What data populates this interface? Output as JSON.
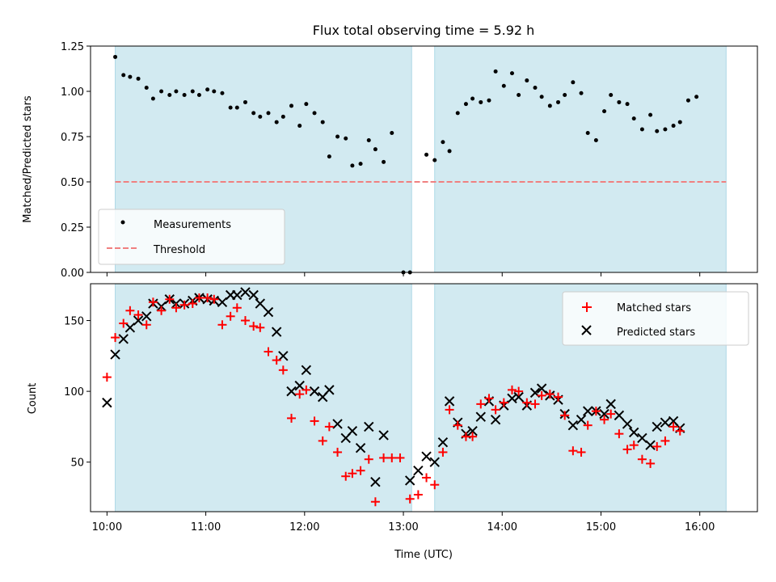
{
  "chart_data": [
    {
      "type": "scatter",
      "title": "Flux total observing time = 5.92 h",
      "xlabel": "",
      "ylabel": "Matched/Predicted stars",
      "ylim": [
        0,
        1.25
      ],
      "yticks": [
        "0.00",
        "0.25",
        "0.50",
        "0.75",
        "1.00",
        "1.25"
      ],
      "xlim": [
        "09:50",
        "16:35"
      ],
      "shaded_intervals": [
        [
          "10:05",
          "13:05"
        ],
        [
          "13:19",
          "16:16"
        ]
      ],
      "shade_color": "#add8e6",
      "legend_position": "lower-left",
      "threshold": {
        "name": "Threshold",
        "value": 0.5,
        "x_range": [
          "10:05",
          "16:16"
        ],
        "color": "#f08080",
        "style": "dashed"
      },
      "series": [
        {
          "name": "Measurements",
          "marker": "dot",
          "color": "#000000",
          "points": [
            [
              "10:05",
              1.19
            ],
            [
              "10:10",
              1.09
            ],
            [
              "10:14",
              1.08
            ],
            [
              "10:19",
              1.07
            ],
            [
              "10:24",
              1.02
            ],
            [
              "10:28",
              0.96
            ],
            [
              "10:33",
              1.0
            ],
            [
              "10:38",
              0.98
            ],
            [
              "10:42",
              1.0
            ],
            [
              "10:47",
              0.98
            ],
            [
              "10:52",
              1.0
            ],
            [
              "10:56",
              0.98
            ],
            [
              "11:01",
              1.01
            ],
            [
              "11:05",
              1.0
            ],
            [
              "11:10",
              0.99
            ],
            [
              "11:15",
              0.91
            ],
            [
              "11:19",
              0.91
            ],
            [
              "11:24",
              0.94
            ],
            [
              "11:29",
              0.88
            ],
            [
              "11:33",
              0.86
            ],
            [
              "11:38",
              0.88
            ],
            [
              "11:43",
              0.83
            ],
            [
              "11:47",
              0.86
            ],
            [
              "11:52",
              0.92
            ],
            [
              "11:57",
              0.81
            ],
            [
              "12:01",
              0.93
            ],
            [
              "12:06",
              0.88
            ],
            [
              "12:11",
              0.83
            ],
            [
              "12:15",
              0.64
            ],
            [
              "12:20",
              0.75
            ],
            [
              "12:25",
              0.74
            ],
            [
              "12:29",
              0.59
            ],
            [
              "12:34",
              0.6
            ],
            [
              "12:39",
              0.73
            ],
            [
              "12:43",
              0.68
            ],
            [
              "12:48",
              0.61
            ],
            [
              "12:53",
              0.77
            ],
            [
              "13:00",
              0.0
            ],
            [
              "13:04",
              0.0
            ],
            [
              "13:14",
              0.65
            ],
            [
              "13:19",
              0.62
            ],
            [
              "13:24",
              0.72
            ],
            [
              "13:28",
              0.67
            ],
            [
              "13:33",
              0.88
            ],
            [
              "13:38",
              0.93
            ],
            [
              "13:42",
              0.96
            ],
            [
              "13:47",
              0.94
            ],
            [
              "13:52",
              0.95
            ],
            [
              "13:56",
              1.11
            ],
            [
              "14:01",
              1.03
            ],
            [
              "14:06",
              1.1
            ],
            [
              "14:10",
              0.98
            ],
            [
              "14:15",
              1.06
            ],
            [
              "14:20",
              1.02
            ],
            [
              "14:24",
              0.97
            ],
            [
              "14:29",
              0.92
            ],
            [
              "14:34",
              0.94
            ],
            [
              "14:38",
              0.98
            ],
            [
              "14:43",
              1.05
            ],
            [
              "14:48",
              0.99
            ],
            [
              "14:52",
              0.77
            ],
            [
              "14:57",
              0.73
            ],
            [
              "15:02",
              0.89
            ],
            [
              "15:06",
              0.98
            ],
            [
              "15:11",
              0.94
            ],
            [
              "15:16",
              0.93
            ],
            [
              "15:20",
              0.85
            ],
            [
              "15:25",
              0.79
            ],
            [
              "15:30",
              0.87
            ],
            [
              "15:34",
              0.78
            ],
            [
              "15:39",
              0.79
            ],
            [
              "15:44",
              0.81
            ],
            [
              "15:48",
              0.83
            ],
            [
              "15:53",
              0.95
            ],
            [
              "15:58",
              0.97
            ]
          ]
        }
      ]
    },
    {
      "type": "scatter",
      "title": "",
      "xlabel": "Time (UTC)",
      "ylabel": "Count",
      "ylim": [
        15,
        176
      ],
      "yticks": [
        "50",
        "100",
        "150"
      ],
      "xticks": [
        "10:00",
        "11:00",
        "12:00",
        "13:00",
        "14:00",
        "15:00",
        "16:00"
      ],
      "xlim": [
        "09:50",
        "16:35"
      ],
      "shaded_intervals": [
        [
          "10:05",
          "13:05"
        ],
        [
          "13:19",
          "16:16"
        ]
      ],
      "shade_color": "#add8e6",
      "legend_position": "upper-right",
      "series": [
        {
          "name": "Matched stars",
          "marker": "plus",
          "color": "#ff0000",
          "points": [
            [
              "10:00",
              110
            ],
            [
              "10:05",
              138
            ],
            [
              "10:10",
              148
            ],
            [
              "10:14",
              157
            ],
            [
              "10:19",
              154
            ],
            [
              "10:24",
              147
            ],
            [
              "10:28",
              163
            ],
            [
              "10:33",
              157
            ],
            [
              "10:38",
              165
            ],
            [
              "10:42",
              159
            ],
            [
              "10:47",
              161
            ],
            [
              "10:52",
              162
            ],
            [
              "10:56",
              166
            ],
            [
              "11:01",
              166
            ],
            [
              "11:05",
              165
            ],
            [
              "11:10",
              147
            ],
            [
              "11:15",
              153
            ],
            [
              "11:19",
              159
            ],
            [
              "11:24",
              150
            ],
            [
              "11:29",
              146
            ],
            [
              "11:33",
              145
            ],
            [
              "11:38",
              128
            ],
            [
              "11:43",
              122
            ],
            [
              "11:47",
              115
            ],
            [
              "11:52",
              81
            ],
            [
              "11:57",
              98
            ],
            [
              "12:01",
              101
            ],
            [
              "12:06",
              79
            ],
            [
              "12:11",
              65
            ],
            [
              "12:15",
              75
            ],
            [
              "12:20",
              57
            ],
            [
              "12:25",
              40
            ],
            [
              "12:29",
              42
            ],
            [
              "12:34",
              44
            ],
            [
              "12:39",
              52
            ],
            [
              "12:43",
              22
            ],
            [
              "12:48",
              53
            ],
            [
              "12:53",
              53
            ],
            [
              "12:58",
              53
            ],
            [
              "13:04",
              24
            ],
            [
              "13:09",
              27
            ],
            [
              "13:14",
              39
            ],
            [
              "13:19",
              34
            ],
            [
              "13:24",
              57
            ],
            [
              "13:28",
              87
            ],
            [
              "13:33",
              76
            ],
            [
              "13:38",
              68
            ],
            [
              "13:42",
              68
            ],
            [
              "13:47",
              91
            ],
            [
              "13:52",
              95
            ],
            [
              "13:56",
              87
            ],
            [
              "14:01",
              92
            ],
            [
              "14:06",
              101
            ],
            [
              "14:10",
              100
            ],
            [
              "14:15",
              92
            ],
            [
              "14:20",
              91
            ],
            [
              "14:24",
              97
            ],
            [
              "14:29",
              98
            ],
            [
              "14:34",
              96
            ],
            [
              "14:38",
              83
            ],
            [
              "14:43",
              58
            ],
            [
              "14:48",
              57
            ],
            [
              "14:52",
              76
            ],
            [
              "14:57",
              86
            ],
            [
              "15:02",
              80
            ],
            [
              "15:06",
              84
            ],
            [
              "15:11",
              70
            ],
            [
              "15:16",
              59
            ],
            [
              "15:20",
              62
            ],
            [
              "15:25",
              52
            ],
            [
              "15:30",
              49
            ],
            [
              "15:34",
              61
            ],
            [
              "15:39",
              65
            ],
            [
              "15:44",
              75
            ],
            [
              "15:48",
              72
            ]
          ]
        },
        {
          "name": "Predicted stars",
          "marker": "x",
          "color": "#000000",
          "points": [
            [
              "10:00",
              92
            ],
            [
              "10:05",
              126
            ],
            [
              "10:10",
              137
            ],
            [
              "10:14",
              145
            ],
            [
              "10:19",
              150
            ],
            [
              "10:24",
              153
            ],
            [
              "10:28",
              162
            ],
            [
              "10:33",
              160
            ],
            [
              "10:38",
              165
            ],
            [
              "10:42",
              162
            ],
            [
              "10:47",
              162
            ],
            [
              "10:52",
              164
            ],
            [
              "10:56",
              166
            ],
            [
              "11:01",
              165
            ],
            [
              "11:05",
              164
            ],
            [
              "11:10",
              163
            ],
            [
              "11:15",
              168
            ],
            [
              "11:19",
              168
            ],
            [
              "11:24",
              170
            ],
            [
              "11:29",
              168
            ],
            [
              "11:33",
              162
            ],
            [
              "11:38",
              156
            ],
            [
              "11:43",
              142
            ],
            [
              "11:47",
              125
            ],
            [
              "11:52",
              100
            ],
            [
              "11:57",
              104
            ],
            [
              "12:01",
              115
            ],
            [
              "12:06",
              100
            ],
            [
              "12:11",
              96
            ],
            [
              "12:15",
              101
            ],
            [
              "12:20",
              77
            ],
            [
              "12:25",
              67
            ],
            [
              "12:29",
              72
            ],
            [
              "12:34",
              60
            ],
            [
              "12:39",
              75
            ],
            [
              "12:43",
              36
            ],
            [
              "12:48",
              69
            ],
            [
              "13:04",
              37
            ],
            [
              "13:09",
              44
            ],
            [
              "13:14",
              54
            ],
            [
              "13:19",
              50
            ],
            [
              "13:24",
              64
            ],
            [
              "13:28",
              93
            ],
            [
              "13:33",
              78
            ],
            [
              "13:38",
              70
            ],
            [
              "13:42",
              72
            ],
            [
              "13:47",
              82
            ],
            [
              "13:52",
              93
            ],
            [
              "13:56",
              80
            ],
            [
              "14:01",
              90
            ],
            [
              "14:06",
              95
            ],
            [
              "14:10",
              96
            ],
            [
              "14:15",
              90
            ],
            [
              "14:20",
              99
            ],
            [
              "14:24",
              102
            ],
            [
              "14:29",
              97
            ],
            [
              "14:34",
              94
            ],
            [
              "14:38",
              84
            ],
            [
              "14:43",
              76
            ],
            [
              "14:48",
              80
            ],
            [
              "14:52",
              86
            ],
            [
              "14:57",
              86
            ],
            [
              "15:02",
              84
            ],
            [
              "15:06",
              91
            ],
            [
              "15:11",
              83
            ],
            [
              "15:16",
              77
            ],
            [
              "15:20",
              71
            ],
            [
              "15:25",
              67
            ],
            [
              "15:30",
              62
            ],
            [
              "15:34",
              75
            ],
            [
              "15:39",
              78
            ],
            [
              "15:44",
              79
            ],
            [
              "15:48",
              74
            ]
          ]
        }
      ]
    }
  ]
}
